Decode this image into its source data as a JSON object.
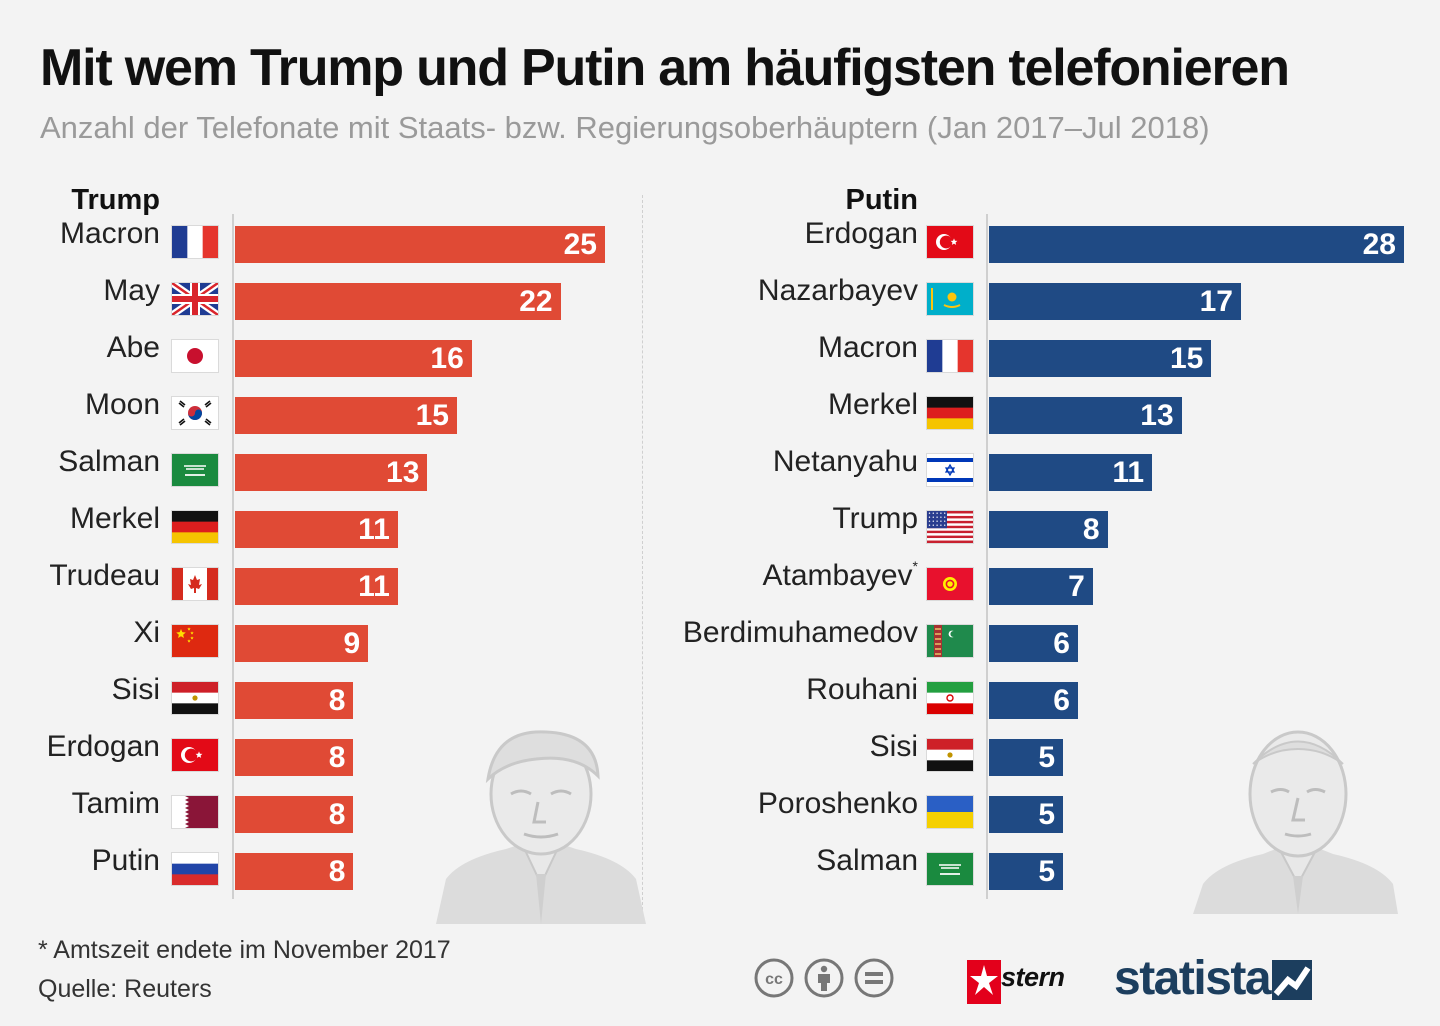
{
  "title": "Mit wem Trump und Putin am häufigsten telefonieren",
  "subtitle": "Anzahl der Telefonate mit Staats- bzw. Regierungsoberhäuptern (Jan 2017–Jul 2018)",
  "colors": {
    "trump_bar": "#e04a35",
    "putin_bar": "#1f4a84",
    "subtitle": "#9a9a9a"
  },
  "chart_data": [
    {
      "type": "bar",
      "title": "Trump",
      "categories": [
        "Macron",
        "May",
        "Abe",
        "Moon",
        "Salman",
        "Merkel",
        "Trudeau",
        "Xi",
        "Sisi",
        "Erdogan",
        "Tamim",
        "Putin"
      ],
      "flags": [
        "france",
        "uk",
        "japan",
        "south-korea",
        "saudi-arabia",
        "germany",
        "canada",
        "china",
        "egypt",
        "turkey",
        "qatar",
        "russia"
      ],
      "values": [
        25,
        22,
        16,
        15,
        13,
        11,
        11,
        9,
        8,
        8,
        8,
        8
      ],
      "xlabel": "",
      "ylabel": "",
      "xlim": [
        0,
        25
      ]
    },
    {
      "type": "bar",
      "title": "Putin",
      "categories": [
        "Erdogan",
        "Nazarbayev",
        "Macron",
        "Merkel",
        "Netanyahu",
        "Trump",
        "Atambayev",
        "Berdimuhamedov",
        "Rouhani",
        "Sisi",
        "Poroshenko",
        "Salman"
      ],
      "marks": [
        "",
        "",
        "",
        "",
        "",
        "",
        "*",
        "",
        "",
        "",
        "",
        ""
      ],
      "flags": [
        "turkey",
        "kazakhstan",
        "france",
        "germany",
        "israel",
        "usa",
        "kyrgyzstan",
        "turkmenistan",
        "iran",
        "egypt",
        "ukraine",
        "saudi-arabia"
      ],
      "values": [
        28,
        17,
        15,
        13,
        11,
        8,
        7,
        6,
        6,
        5,
        5,
        5
      ],
      "xlabel": "",
      "ylabel": "",
      "xlim": [
        0,
        28
      ]
    }
  ],
  "footer": {
    "footnote": "* Amtszeit endete im November 2017",
    "source": "Quelle: Reuters",
    "license_icons": [
      "cc-icon",
      "by-icon",
      "nd-icon"
    ],
    "stern": "stern",
    "statista": "statista"
  }
}
